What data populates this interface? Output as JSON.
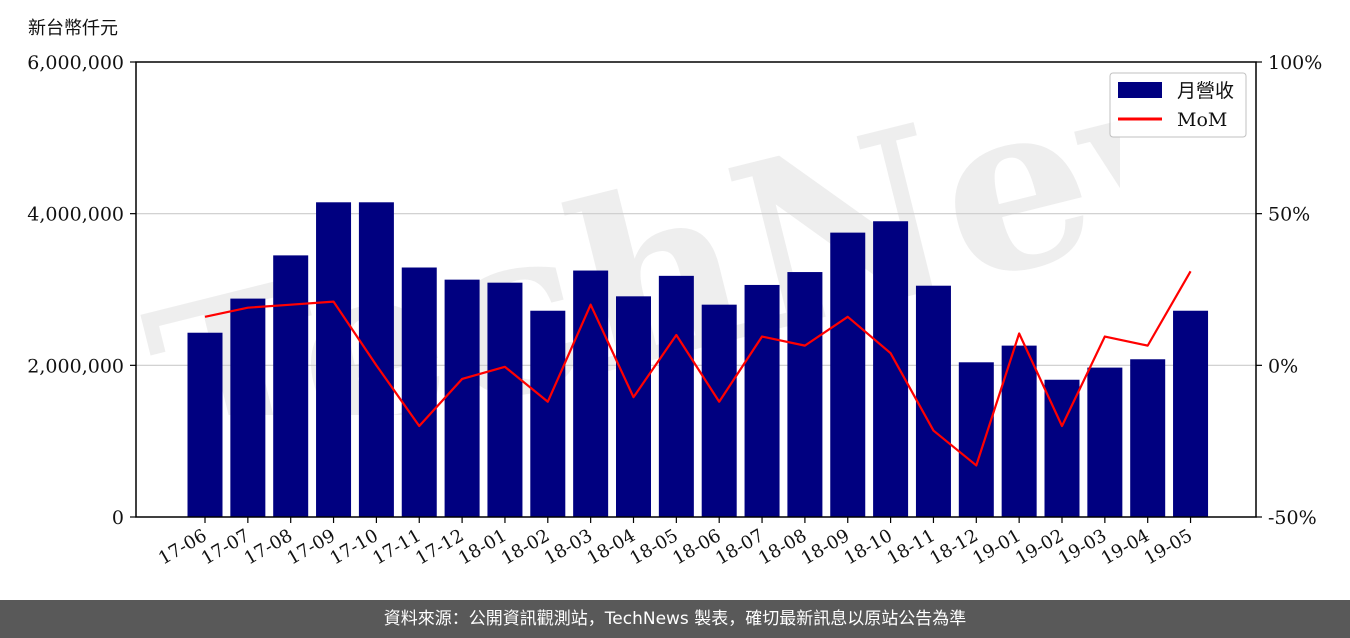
{
  "unit_label": "新台幣仟元",
  "watermark_text": "TechNews",
  "footer": {
    "source": "資料來源：公開資訊觀測站，TechNews 製表，確切最新訊息以原站公告為準"
  },
  "colors": {
    "bar": "#000080",
    "line": "#ff0000",
    "grid": "#cccccc"
  },
  "chart_data": {
    "type": "bar",
    "categories": [
      "17-06",
      "17-07",
      "17-08",
      "17-09",
      "17-10",
      "17-11",
      "17-12",
      "18-01",
      "18-02",
      "18-03",
      "18-04",
      "18-05",
      "18-06",
      "18-07",
      "18-08",
      "18-09",
      "18-10",
      "18-11",
      "18-12",
      "19-01",
      "19-02",
      "19-03",
      "19-04",
      "19-05"
    ],
    "series": [
      {
        "name": "月營收",
        "axis": "left",
        "type": "bar",
        "values": [
          2430000,
          2880000,
          3450000,
          4150000,
          4150000,
          3290000,
          3130000,
          3090000,
          2720000,
          3250000,
          2910000,
          3180000,
          2800000,
          3060000,
          3230000,
          3750000,
          3900000,
          3050000,
          2040000,
          2260000,
          1810000,
          1970000,
          2080000,
          2720000
        ]
      },
      {
        "name": "MoM",
        "axis": "right",
        "type": "line",
        "values": [
          16,
          19,
          20,
          21,
          0,
          -20,
          -4.5,
          -0.5,
          -12,
          20,
          -10.5,
          10,
          -12,
          9.5,
          6.5,
          16,
          4,
          -21.5,
          -33,
          10.5,
          -20,
          9.5,
          6.5,
          31
        ]
      }
    ],
    "y_left": {
      "ylim": [
        0,
        6000000
      ],
      "ticks": [
        0,
        2000000,
        4000000,
        6000000
      ],
      "tick_labels": [
        "0",
        "2,000,000",
        "4,000,000",
        "6,000,000"
      ]
    },
    "y_right": {
      "ylim": [
        -50,
        100
      ],
      "ticks": [
        -50,
        0,
        50,
        100
      ],
      "tick_labels": [
        "-50%",
        "0%",
        "50%",
        "100%"
      ]
    },
    "grid": "horizontal",
    "legend": "top-right",
    "title": "",
    "xlabel": "",
    "ylabel": ""
  }
}
